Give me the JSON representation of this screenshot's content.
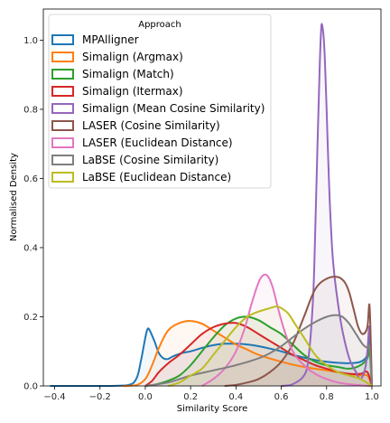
{
  "chart_data": {
    "type": "line",
    "title": "",
    "xlabel": "Similarity Score",
    "ylabel": "Normalised Density",
    "xlim": [
      -0.45,
      1.04
    ],
    "ylim": [
      0.0,
      1.09
    ],
    "xticks": [
      -0.4,
      -0.2,
      0.0,
      0.2,
      0.4,
      0.6,
      0.8,
      1.0
    ],
    "xtick_labels": [
      "−0.4",
      "−0.2",
      "0.0",
      "0.2",
      "0.4",
      "0.6",
      "0.8",
      "1.0"
    ],
    "yticks": [
      0.0,
      0.2,
      0.4,
      0.6,
      0.8,
      1.0
    ],
    "ytick_labels": [
      "0.0",
      "0.2",
      "0.4",
      "0.6",
      "0.8",
      "1.0"
    ],
    "grid": false,
    "legend_title": "Approach",
    "legend_position": "top-left",
    "series": [
      {
        "name": "MPAlligner",
        "color": "#1f77b4",
        "x": [
          -0.42,
          -0.2,
          -0.08,
          -0.04,
          -0.02,
          0.0,
          0.01,
          0.02,
          0.04,
          0.06,
          0.08,
          0.1,
          0.12,
          0.16,
          0.2,
          0.25,
          0.3,
          0.35,
          0.4,
          0.45,
          0.5,
          0.55,
          0.6,
          0.65,
          0.7,
          0.75,
          0.8,
          0.85,
          0.9,
          0.95,
          0.98,
          0.99,
          1.0
        ],
        "y": [
          0.0,
          0.0,
          0.002,
          0.02,
          0.07,
          0.14,
          0.165,
          0.16,
          0.13,
          0.095,
          0.08,
          0.078,
          0.085,
          0.095,
          0.1,
          0.11,
          0.118,
          0.122,
          0.122,
          0.12,
          0.115,
          0.108,
          0.1,
          0.09,
          0.082,
          0.075,
          0.07,
          0.067,
          0.066,
          0.07,
          0.09,
          0.14,
          0.0
        ]
      },
      {
        "name": "Simalign (Argmax)",
        "color": "#ff7f0e",
        "x": [
          -0.1,
          -0.04,
          0.0,
          0.03,
          0.06,
          0.1,
          0.15,
          0.2,
          0.25,
          0.3,
          0.35,
          0.4,
          0.45,
          0.5,
          0.6,
          0.7,
          0.8,
          0.9,
          0.95,
          0.98,
          1.0
        ],
        "y": [
          0.0,
          0.002,
          0.02,
          0.06,
          0.11,
          0.16,
          0.182,
          0.188,
          0.18,
          0.16,
          0.14,
          0.12,
          0.105,
          0.09,
          0.07,
          0.055,
          0.045,
          0.035,
          0.03,
          0.03,
          0.0
        ]
      },
      {
        "name": "Simalign (Match)",
        "color": "#2ca02c",
        "x": [
          0.0,
          0.05,
          0.1,
          0.15,
          0.2,
          0.25,
          0.3,
          0.35,
          0.4,
          0.45,
          0.5,
          0.55,
          0.6,
          0.65,
          0.7,
          0.75,
          0.8,
          0.85,
          0.9,
          0.95,
          0.98,
          0.99,
          1.0
        ],
        "y": [
          0.0,
          0.005,
          0.015,
          0.03,
          0.06,
          0.1,
          0.14,
          0.175,
          0.195,
          0.2,
          0.19,
          0.17,
          0.15,
          0.12,
          0.09,
          0.07,
          0.06,
          0.055,
          0.05,
          0.06,
          0.08,
          0.1,
          0.0
        ]
      },
      {
        "name": "Simalign (Itermax)",
        "color": "#d62728",
        "x": [
          0.0,
          0.03,
          0.06,
          0.1,
          0.15,
          0.2,
          0.25,
          0.3,
          0.35,
          0.4,
          0.45,
          0.5,
          0.55,
          0.6,
          0.65,
          0.7,
          0.75,
          0.8,
          0.85,
          0.9,
          0.95,
          0.98,
          1.0
        ],
        "y": [
          0.0,
          0.015,
          0.04,
          0.065,
          0.09,
          0.12,
          0.15,
          0.17,
          0.18,
          0.182,
          0.17,
          0.15,
          0.13,
          0.11,
          0.09,
          0.075,
          0.06,
          0.05,
          0.04,
          0.035,
          0.035,
          0.04,
          0.0
        ]
      },
      {
        "name": "Simalign (Mean Cosine Similarity)",
        "color": "#9467bd",
        "x": [
          0.6,
          0.65,
          0.7,
          0.72,
          0.74,
          0.75,
          0.76,
          0.77,
          0.775,
          0.78,
          0.79,
          0.8,
          0.81,
          0.82,
          0.83,
          0.85,
          0.87,
          0.9,
          0.93,
          0.95,
          0.97,
          0.98,
          0.99,
          1.0
        ],
        "y": [
          0.0,
          0.005,
          0.03,
          0.08,
          0.25,
          0.45,
          0.7,
          0.93,
          1.02,
          1.045,
          0.98,
          0.8,
          0.6,
          0.45,
          0.35,
          0.24,
          0.16,
          0.08,
          0.04,
          0.02,
          0.05,
          0.1,
          0.17,
          0.0
        ]
      },
      {
        "name": "LASER (Cosine Similarity)",
        "color": "#8c564b",
        "x": [
          0.35,
          0.4,
          0.45,
          0.5,
          0.55,
          0.6,
          0.65,
          0.7,
          0.75,
          0.8,
          0.85,
          0.88,
          0.9,
          0.92,
          0.94,
          0.96,
          0.98,
          0.99,
          1.0
        ],
        "y": [
          0.0,
          0.003,
          0.01,
          0.02,
          0.04,
          0.07,
          0.12,
          0.2,
          0.28,
          0.31,
          0.315,
          0.3,
          0.27,
          0.22,
          0.17,
          0.15,
          0.17,
          0.23,
          0.0
        ]
      },
      {
        "name": "LASER (Euclidean Distance)",
        "color": "#e377c2",
        "x": [
          0.25,
          0.3,
          0.35,
          0.4,
          0.44,
          0.47,
          0.5,
          0.52,
          0.54,
          0.56,
          0.58,
          0.6,
          0.63,
          0.66,
          0.7,
          0.75,
          0.8,
          0.85,
          0.9,
          0.95,
          1.0
        ],
        "y": [
          0.0,
          0.02,
          0.05,
          0.1,
          0.17,
          0.24,
          0.3,
          0.32,
          0.318,
          0.29,
          0.24,
          0.19,
          0.13,
          0.09,
          0.06,
          0.035,
          0.02,
          0.01,
          0.005,
          0.002,
          0.0
        ]
      },
      {
        "name": "LaBSE (Cosine Similarity)",
        "color": "#7f7f7f",
        "x": [
          0.0,
          0.1,
          0.2,
          0.3,
          0.4,
          0.5,
          0.55,
          0.6,
          0.65,
          0.7,
          0.75,
          0.8,
          0.84,
          0.87,
          0.9,
          0.93,
          0.96,
          0.98,
          0.99,
          1.0
        ],
        "y": [
          0.0,
          0.01,
          0.03,
          0.045,
          0.06,
          0.08,
          0.095,
          0.115,
          0.14,
          0.165,
          0.185,
          0.2,
          0.205,
          0.2,
          0.18,
          0.15,
          0.12,
          0.11,
          0.11,
          0.0
        ]
      },
      {
        "name": "LaBSE (Euclidean Distance)",
        "color": "#bcbd22",
        "x": [
          0.1,
          0.15,
          0.2,
          0.25,
          0.3,
          0.35,
          0.4,
          0.45,
          0.5,
          0.55,
          0.58,
          0.6,
          0.63,
          0.66,
          0.7,
          0.75,
          0.8,
          0.85,
          0.9,
          0.95,
          1.0
        ],
        "y": [
          0.0,
          0.01,
          0.03,
          0.05,
          0.09,
          0.13,
          0.17,
          0.2,
          0.215,
          0.225,
          0.23,
          0.225,
          0.21,
          0.18,
          0.14,
          0.09,
          0.06,
          0.04,
          0.03,
          0.02,
          0.0
        ]
      }
    ]
  }
}
